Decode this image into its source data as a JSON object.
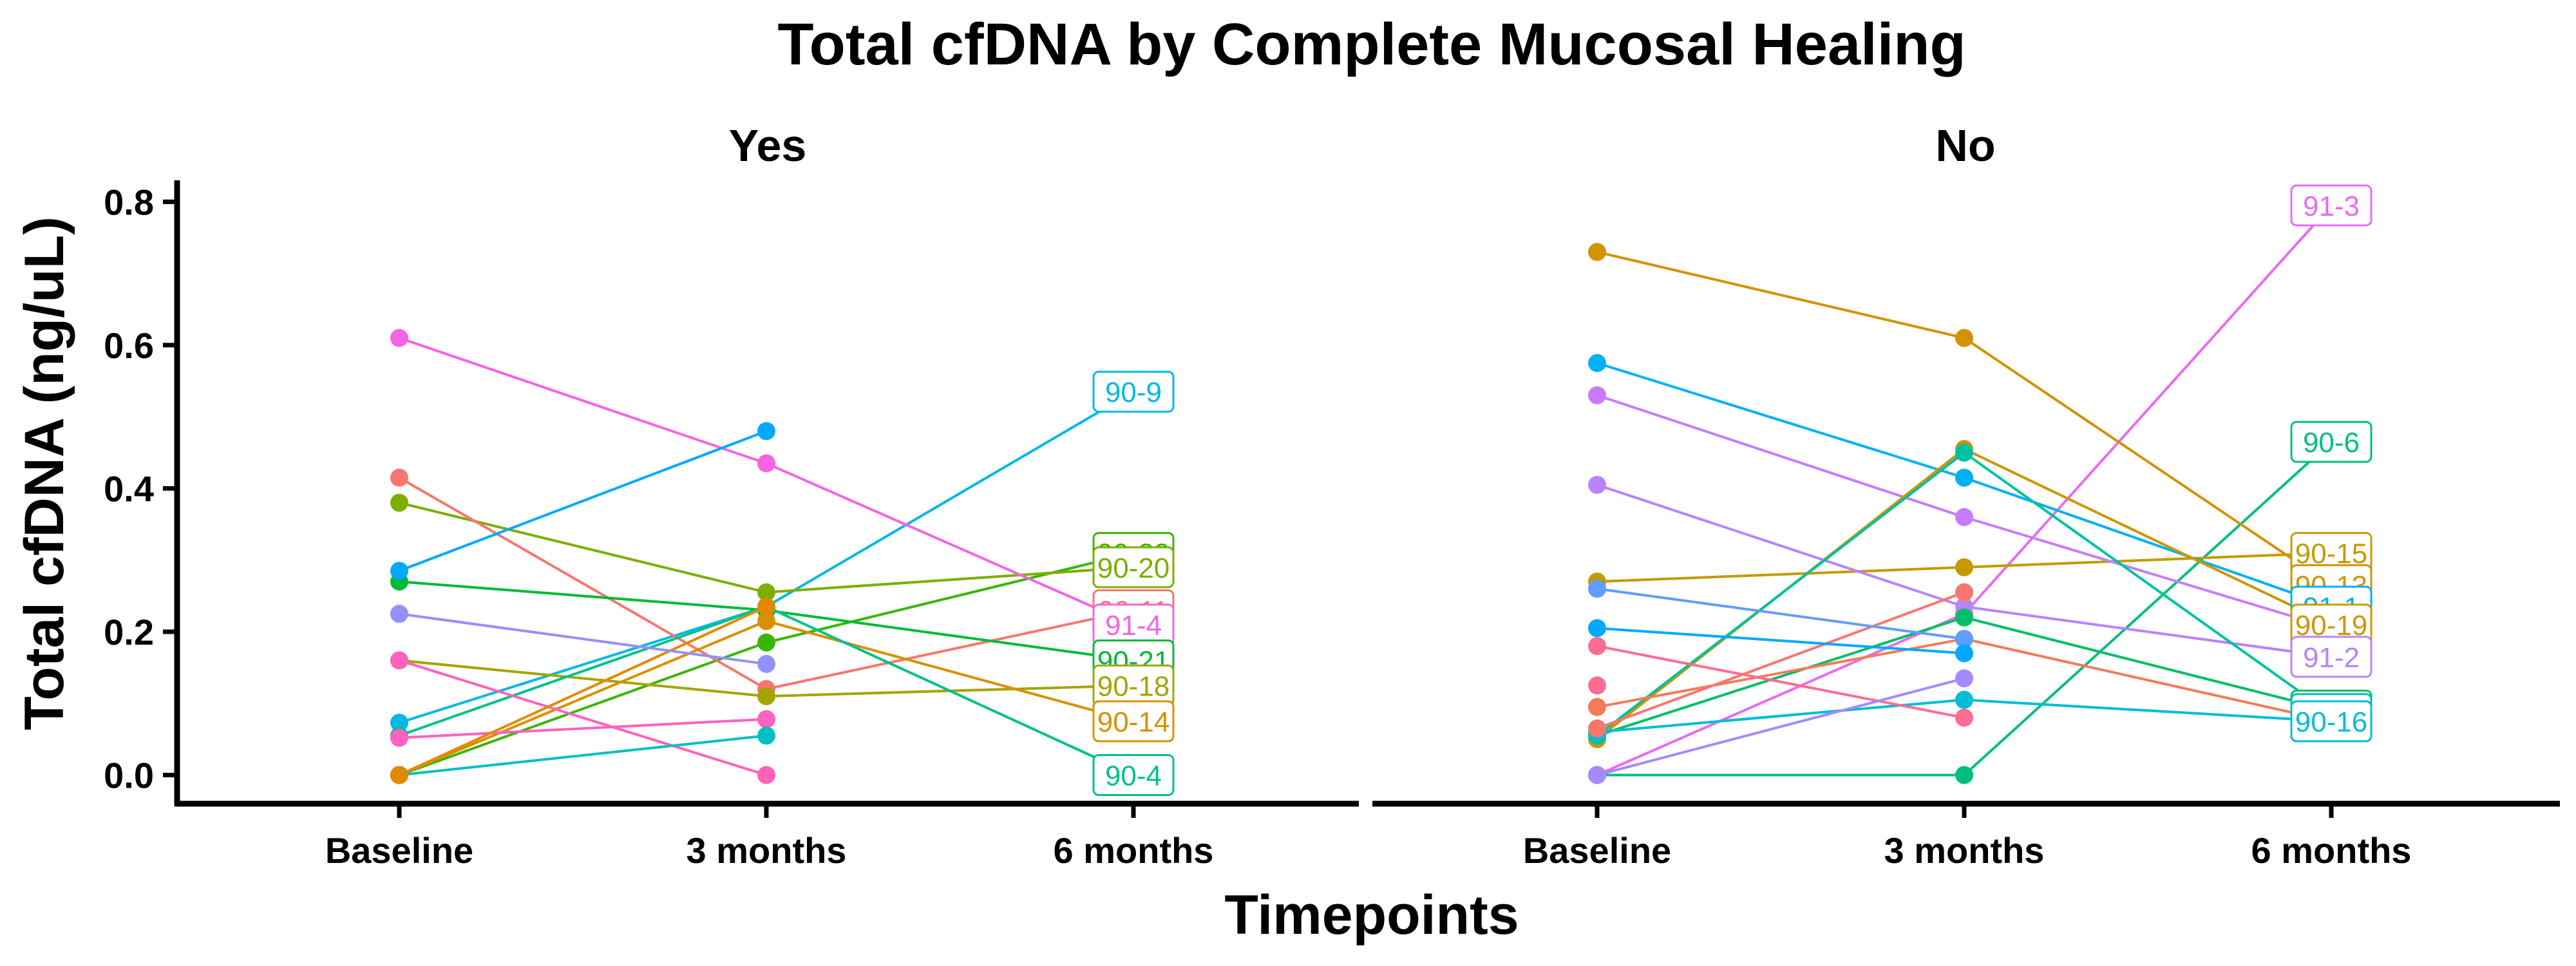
{
  "chart_data": {
    "type": "line",
    "title": "Total cfDNA by Complete Mucosal Healing",
    "xlabel": "Timepoints",
    "ylabel": "Total cfDNA (ng/uL)",
    "categories": [
      "Baseline",
      "3 months",
      "6 months"
    ],
    "ylim": [
      -0.04,
      0.83
    ],
    "yticks": [
      "0.0",
      "0.2",
      "0.4",
      "0.6",
      "0.8"
    ],
    "grid": false,
    "legend": "none",
    "facets": [
      {
        "title": "Yes",
        "series": [
          {
            "name": "90-9",
            "color": "#00B8E7",
            "values": [
              0.073,
              0.235,
              0.535
            ]
          },
          {
            "name": "90-22",
            "color": "#39B600",
            "values": [
              0.0,
              0.185,
              0.31
            ]
          },
          {
            "name": "90-20",
            "color": "#7CAE00",
            "values": [
              0.38,
              0.255,
              0.29
            ]
          },
          {
            "name": "90-11",
            "color": "#F8766D",
            "values": [
              0.415,
              0.12,
              0.23
            ]
          },
          {
            "name": "91-4",
            "color": "#F564E3",
            "values": [
              0.61,
              0.435,
              0.21
            ]
          },
          {
            "name": "90-21",
            "color": "#00BA38",
            "values": [
              0.27,
              0.23,
              0.16
            ]
          },
          {
            "name": "90-18",
            "color": "#A3A500",
            "values": [
              0.16,
              0.11,
              0.125
            ]
          },
          {
            "name": "90-14",
            "color": "#D89000",
            "values": [
              0.0,
              0.215,
              0.075
            ]
          },
          {
            "name": "90-4",
            "color": "#00C08B",
            "values": [
              0.055,
              0.235,
              0.0
            ]
          },
          {
            "name": "",
            "color": "#00A9FF",
            "values": [
              0.285,
              0.48,
              null
            ]
          },
          {
            "name": "",
            "color": "#FF62BC",
            "values": [
              0.16,
              0.0,
              null
            ]
          },
          {
            "name": "",
            "color": "#FF61C3",
            "values": [
              0.052,
              0.078,
              null
            ]
          },
          {
            "name": "",
            "color": "#00BFC4",
            "values": [
              0.0,
              0.055,
              null
            ]
          },
          {
            "name": "",
            "color": "#E38900",
            "values": [
              0.0,
              0.235,
              null
            ]
          },
          {
            "name": "",
            "color": "#9590FF",
            "values": [
              0.225,
              0.155,
              null
            ]
          }
        ]
      },
      {
        "title": "No",
        "series": [
          {
            "name": "91-3",
            "color": "#E76BF3",
            "values": [
              0.0,
              0.225,
              0.795
            ]
          },
          {
            "name": "90-6",
            "color": "#00BF7D",
            "values": [
              0.0,
              0.0,
              0.465
            ]
          },
          {
            "name": "90-15",
            "color": "#C49A00",
            "values": [
              0.27,
              0.29,
              0.31
            ]
          },
          {
            "name": "90-13",
            "color": "#D39200",
            "values": [
              0.73,
              0.61,
              0.265
            ]
          },
          {
            "name": "91-1",
            "color": "#00B0F6",
            "values": [
              0.575,
              0.415,
              0.235
            ]
          },
          {
            "name": "90-12",
            "color": "#C77CFF",
            "values": [
              0.53,
              0.36,
              0.205
            ]
          },
          {
            "name": "90-19",
            "color": "#CD9600",
            "values": [
              0.05,
              0.455,
              0.21
            ]
          },
          {
            "name": "91-2",
            "color": "#B983FF",
            "values": [
              0.405,
              0.235,
              0.165
            ]
          },
          {
            "name": "90-5",
            "color": "#00BE67",
            "values": [
              0.055,
              0.22,
              0.09
            ]
          },
          {
            "name": "90-7",
            "color": "#00C1A3",
            "values": [
              0.055,
              0.45,
              0.085
            ]
          },
          {
            "name": "90-10",
            "color": "#F37B59",
            "values": [
              0.095,
              0.19,
              0.075
            ]
          },
          {
            "name": "90-16",
            "color": "#00BCD8",
            "values": [
              0.06,
              0.105,
              0.075
            ]
          },
          {
            "name": "",
            "color": "#F8766D",
            "values": [
              0.065,
              0.255,
              null
            ]
          },
          {
            "name": "",
            "color": "#619CFF",
            "values": [
              0.26,
              0.19,
              null
            ]
          },
          {
            "name": "",
            "color": "#00A9FF",
            "values": [
              0.205,
              0.17,
              null
            ]
          },
          {
            "name": "",
            "color": "#FF6C91",
            "values": [
              0.18,
              0.08,
              null
            ]
          },
          {
            "name": "",
            "color": "#A58AFF",
            "values": [
              0.0,
              0.135,
              null
            ]
          },
          {
            "name": "",
            "color": "#FF6C91",
            "values": [
              0.125,
              null,
              null
            ]
          }
        ]
      }
    ]
  }
}
